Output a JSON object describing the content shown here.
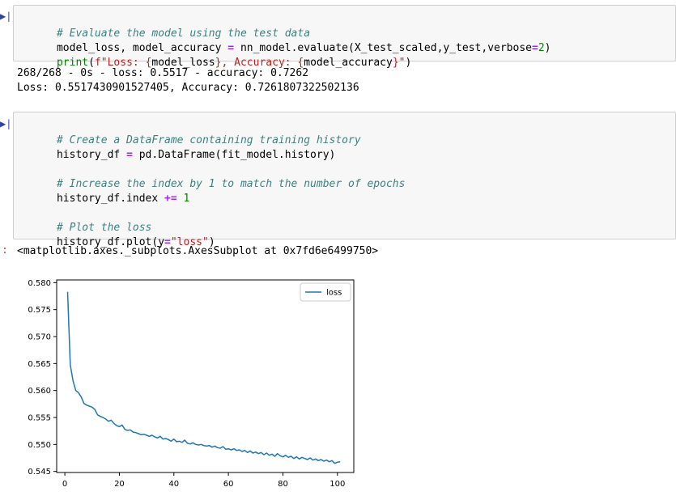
{
  "cells": {
    "eval": {
      "comment": "# Evaluate the model using the test data",
      "line2_a": "model_loss, model_accuracy ",
      "line2_op": "=",
      "line2_b": " nn_model.evaluate(X_test_scaled,y_test,verbose",
      "line2_op2": "=",
      "line2_num": "2",
      "line2_c": ")",
      "line3_kw": "print",
      "line3_a": "(",
      "line3_str": "f\"Loss: {",
      "line3_b": "model_loss",
      "line3_str2": "}, Accuracy: {",
      "line3_c": "model_accuracy",
      "line3_str3": "}\"",
      "line3_d": ")",
      "output_1": "268/268 - 0s - loss: 0.5517 - accuracy: 0.7262",
      "output_2": "Loss: 0.5517430901527405, Accuracy: 0.7261807322502136"
    },
    "history": {
      "comment1": "# Create a DataFrame containing training history",
      "line2_a": "history_df ",
      "line2_op": "=",
      "line2_b": " pd.DataFrame(fit_model.history)",
      "comment2": "# Increase the index by 1 to match the number of epochs",
      "line4_a": "history_df.index ",
      "line4_op": "+=",
      "line4_sp": " ",
      "line4_num": "1",
      "comment3": "# Plot the loss",
      "line6_a": "history_df.plot(y",
      "line6_op": "=",
      "line6_str": "\"loss\"",
      "line6_b": ")",
      "output_prompt": ":",
      "output_text": "<matplotlib.axes._subplots.AxesSubplot at 0x7fd6e6499750>"
    }
  },
  "colors": {
    "line": "#1f77b4"
  },
  "chart_data": {
    "type": "line",
    "series": [
      {
        "name": "loss",
        "x": [
          1,
          2,
          3,
          4,
          5,
          6,
          7,
          8,
          9,
          10,
          11,
          12,
          13,
          14,
          15,
          16,
          17,
          18,
          19,
          20,
          21,
          22,
          23,
          24,
          25,
          26,
          27,
          28,
          29,
          30,
          31,
          32,
          33,
          34,
          35,
          36,
          37,
          38,
          39,
          40,
          41,
          42,
          43,
          44,
          45,
          46,
          47,
          48,
          49,
          50,
          51,
          52,
          53,
          54,
          55,
          56,
          57,
          58,
          59,
          60,
          61,
          62,
          63,
          64,
          65,
          66,
          67,
          68,
          69,
          70,
          71,
          72,
          73,
          74,
          75,
          76,
          77,
          78,
          79,
          80,
          81,
          82,
          83,
          84,
          85,
          86,
          87,
          88,
          89,
          90,
          91,
          92,
          93,
          94,
          95,
          96,
          97,
          98,
          99,
          100,
          101
        ],
        "values": [
          0.5783,
          0.5648,
          0.5618,
          0.56,
          0.5596,
          0.5588,
          0.5576,
          0.5573,
          0.5571,
          0.5569,
          0.5565,
          0.5555,
          0.5552,
          0.555,
          0.5547,
          0.5543,
          0.5545,
          0.5539,
          0.5535,
          0.5533,
          0.5536,
          0.5528,
          0.5526,
          0.5527,
          0.5523,
          0.5522,
          0.552,
          0.5518,
          0.5519,
          0.5517,
          0.5515,
          0.5517,
          0.5514,
          0.5512,
          0.5515,
          0.551,
          0.5511,
          0.5509,
          0.5506,
          0.551,
          0.5505,
          0.5506,
          0.5504,
          0.5508,
          0.5502,
          0.5501,
          0.5503,
          0.55,
          0.5499,
          0.55,
          0.5498,
          0.5497,
          0.5498,
          0.5495,
          0.5497,
          0.5494,
          0.5493,
          0.5496,
          0.5491,
          0.5492,
          0.549,
          0.5492,
          0.5489,
          0.549,
          0.5487,
          0.5489,
          0.5485,
          0.5488,
          0.5484,
          0.5486,
          0.5483,
          0.5485,
          0.5481,
          0.5484,
          0.548,
          0.5482,
          0.5478,
          0.5483,
          0.5479,
          0.5477,
          0.548,
          0.5476,
          0.5478,
          0.5474,
          0.5477,
          0.5473,
          0.5476,
          0.5474,
          0.5472,
          0.5475,
          0.5471,
          0.5473,
          0.547,
          0.5472,
          0.5469,
          0.5471,
          0.5468,
          0.547,
          0.5465,
          0.5467,
          0.5468
        ]
      }
    ],
    "xlim": [
      -3,
      106
    ],
    "ylim": [
      0.5448,
      0.5805
    ],
    "xticks": [
      0,
      20,
      40,
      60,
      80,
      100
    ],
    "xtick_labels": [
      "0",
      "20",
      "40",
      "60",
      "80",
      "100"
    ],
    "yticks": [
      0.545,
      0.55,
      0.555,
      0.56,
      0.565,
      0.57,
      0.575,
      0.58
    ],
    "ytick_labels": [
      "0.545",
      "0.550",
      "0.555",
      "0.560",
      "0.565",
      "0.570",
      "0.575",
      "0.580"
    ],
    "legend": "top-right",
    "legend_label": "loss",
    "grid": false,
    "title": "",
    "xlabel": "",
    "ylabel": ""
  }
}
